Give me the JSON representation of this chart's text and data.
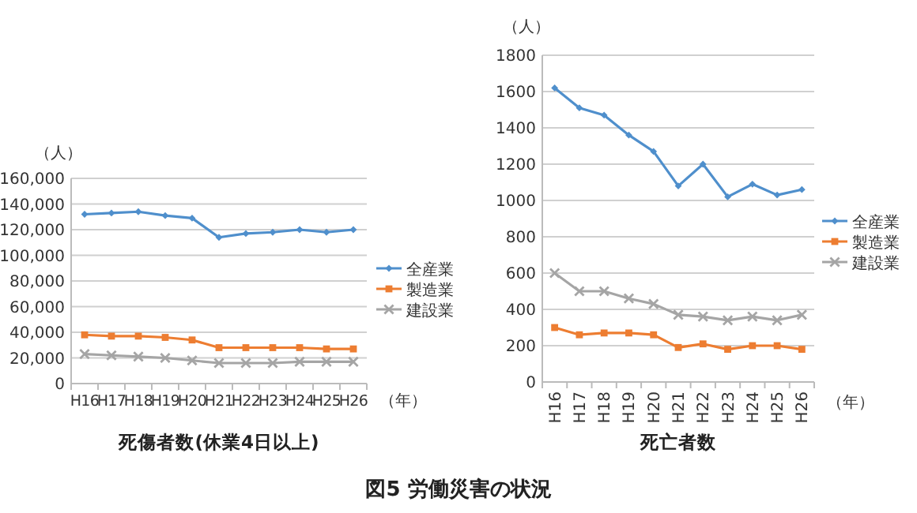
{
  "chart_data": [
    {
      "type": "line",
      "title": "死傷者数(休業4日以上)",
      "xlabel": "（年）",
      "ylabel": "（人）",
      "annotations": [
        "図5  労働災害の状況"
      ],
      "categories": [
        "H16",
        "H17",
        "H18",
        "H19",
        "H20",
        "H21",
        "H22",
        "H23",
        "H24",
        "H25",
        "H26"
      ],
      "series": [
        {
          "name": "全産業",
          "color": "#4f8fcc",
          "marker": "diamond",
          "values": [
            132000,
            133000,
            134000,
            131000,
            129000,
            114000,
            117000,
            118000,
            120000,
            118000,
            120000
          ]
        },
        {
          "name": "製造業",
          "color": "#ed7d31",
          "marker": "square",
          "values": [
            38000,
            37000,
            37000,
            36000,
            34000,
            28000,
            28000,
            28000,
            28000,
            27000,
            27000
          ]
        },
        {
          "name": "建設業",
          "color": "#a5a5a5",
          "marker": "cross",
          "values": [
            23000,
            22000,
            21000,
            20000,
            18000,
            16000,
            16000,
            16000,
            17000,
            17000,
            17000
          ]
        }
      ],
      "ylim": [
        0,
        160000
      ],
      "yticks": [
        0,
        {
          "value": 20000,
          "label": "20,000"
        },
        {
          "value": 40000,
          "label": "40,000"
        },
        {
          "value": 60000,
          "label": "60,000"
        },
        {
          "value": 80000,
          "label": "80,000"
        },
        {
          "value": 100000,
          "label": "100,000"
        },
        {
          "value": 120000,
          "label": "120,000"
        },
        {
          "value": 140000,
          "label": "140,000"
        },
        {
          "value": 160000,
          "label": "160,000"
        }
      ],
      "grid": "y",
      "legend": "right"
    },
    {
      "type": "line",
      "title": "死亡者数",
      "xlabel": "（年）",
      "ylabel": "（人）",
      "categories": [
        "H16",
        "H17",
        "H18",
        "H19",
        "H20",
        "H21",
        "H22",
        "H23",
        "H24",
        "H25",
        "H26"
      ],
      "series": [
        {
          "name": "全産業",
          "color": "#4f8fcc",
          "marker": "diamond",
          "values": [
            1620,
            1510,
            1470,
            1360,
            1270,
            1080,
            1200,
            1020,
            1090,
            1030,
            1060
          ]
        },
        {
          "name": "製造業",
          "color": "#ed7d31",
          "marker": "square",
          "values": [
            300,
            260,
            270,
            270,
            260,
            190,
            210,
            180,
            200,
            200,
            180
          ]
        },
        {
          "name": "建設業",
          "color": "#a5a5a5",
          "marker": "cross",
          "values": [
            600,
            500,
            500,
            460,
            430,
            370,
            360,
            340,
            360,
            340,
            370
          ]
        }
      ],
      "ylim": [
        0,
        1800
      ],
      "yticks": [
        0,
        200,
        400,
        600,
        800,
        1000,
        1200,
        1400,
        1600,
        1800
      ],
      "grid": "y",
      "legend": "right"
    }
  ]
}
